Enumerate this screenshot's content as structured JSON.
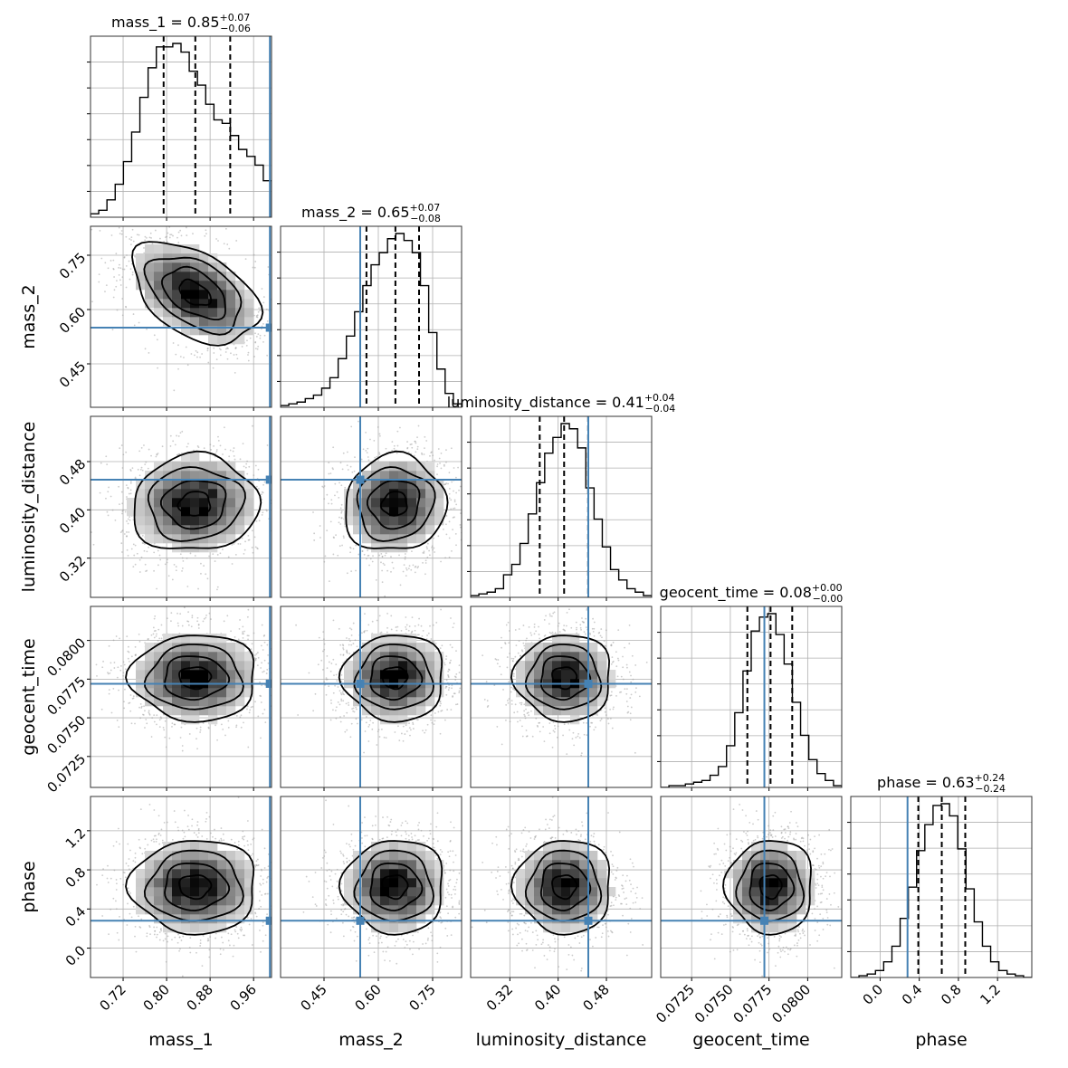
{
  "chart_data": {
    "type": "corner",
    "parameters": [
      {
        "name": "mass_1",
        "label": "mass_1",
        "range": [
          0.66,
          0.993
        ],
        "ticks": [
          0.72,
          0.8,
          0.88,
          0.96
        ],
        "tick_labels": [
          "0.72",
          "0.80",
          "0.88",
          "0.96"
        ],
        "truth": 0.99,
        "median": 0.85,
        "upper_err": "0.07",
        "lower_err": "0.06",
        "quantiles": [
          0.7945,
          0.8528,
          0.917
        ],
        "mean": 0.852,
        "sd": 0.058,
        "hist": [
          0.02,
          0.04,
          0.1,
          0.19,
          0.32,
          0.49,
          0.69,
          0.86,
          0.98,
          0.98,
          1.0,
          0.95,
          0.84,
          0.76,
          0.65,
          0.56,
          0.54,
          0.47,
          0.39,
          0.35,
          0.3,
          0.21
        ],
        "title_main": "mass_1 = 0.85",
        "title_plus": "+0.07",
        "title_minus": "−0.06"
      },
      {
        "name": "mass_2",
        "label": "mass_2",
        "range": [
          0.33,
          0.83
        ],
        "ticks": [
          0.45,
          0.6,
          0.75
        ],
        "tick_labels": [
          "0.45",
          "0.60",
          "0.75"
        ],
        "truth": 0.55,
        "median": 0.65,
        "upper_err": "0.07",
        "lower_err": "0.08",
        "quantiles": [
          0.5672,
          0.6472,
          0.7125
        ],
        "mean": 0.645,
        "sd": 0.07,
        "hist": [
          0.01,
          0.02,
          0.03,
          0.05,
          0.07,
          0.11,
          0.17,
          0.28,
          0.41,
          0.55,
          0.7,
          0.82,
          0.89,
          0.97,
          1.0,
          0.96,
          0.89,
          0.7,
          0.43,
          0.22,
          0.08,
          0.02
        ],
        "title_main": "mass_2 = 0.65",
        "title_plus": "+0.07",
        "title_minus": "−0.08"
      },
      {
        "name": "luminosity_distance",
        "label": "luminosity_distance",
        "range": [
          0.255,
          0.555
        ],
        "ticks": [
          0.32,
          0.4,
          0.48
        ],
        "tick_labels": [
          "0.32",
          "0.40",
          "0.48"
        ],
        "truth": 0.45,
        "median": 0.41,
        "upper_err": "0.04",
        "lower_err": "0.04",
        "quantiles": [
          0.3695,
          0.4099,
          0.4498
        ],
        "mean": 0.41,
        "sd": 0.04,
        "hist": [
          0.01,
          0.02,
          0.03,
          0.05,
          0.13,
          0.19,
          0.31,
          0.48,
          0.66,
          0.83,
          0.92,
          1.0,
          0.97,
          0.86,
          0.63,
          0.45,
          0.29,
          0.16,
          0.1,
          0.05,
          0.03,
          0.01
        ],
        "title_main": "luminosity_distance = 0.41",
        "title_plus": "+0.04",
        "title_minus": "−0.04"
      },
      {
        "name": "geocent_time",
        "label": "geocent_time",
        "range": [
          0.0705,
          0.0822
        ],
        "ticks": [
          0.0725,
          0.075,
          0.0775,
          0.08
        ],
        "tick_labels": [
          "0.0725",
          "0.0750",
          "0.0775",
          "0.0800"
        ],
        "truth": 0.0772,
        "median": 0.08,
        "upper_err": "0.00",
        "lower_err": "0.00",
        "quantiles": [
          0.0761,
          0.0776,
          0.079
        ],
        "mean": 0.0776,
        "sd": 0.0014,
        "hist": [
          0.0,
          0.01,
          0.01,
          0.02,
          0.03,
          0.04,
          0.07,
          0.12,
          0.24,
          0.43,
          0.67,
          0.9,
          0.98,
          1.0,
          0.88,
          0.71,
          0.49,
          0.3,
          0.16,
          0.08,
          0.04,
          0.01
        ],
        "title_main": "geocent_time = 0.08",
        "title_plus": "+0.00",
        "title_minus": "−0.00"
      },
      {
        "name": "phase",
        "label": "phase",
        "range": [
          -0.3,
          1.55
        ],
        "ticks": [
          0.0,
          0.4,
          0.8,
          1.2
        ],
        "tick_labels": [
          "0.0",
          "0.4",
          "0.8",
          "1.2"
        ],
        "truth": 0.28,
        "median": 0.63,
        "upper_err": "0.24",
        "lower_err": "0.24",
        "quantiles": [
          0.39,
          0.63,
          0.87
        ],
        "mean": 0.63,
        "sd": 0.24,
        "hist": [
          0.0,
          0.01,
          0.02,
          0.04,
          0.09,
          0.18,
          0.34,
          0.52,
          0.73,
          0.88,
          0.99,
          1.0,
          0.93,
          0.74,
          0.51,
          0.32,
          0.18,
          0.09,
          0.04,
          0.02,
          0.01,
          0.0
        ],
        "title_main": "phase = 0.63",
        "title_plus": "+0.24",
        "title_minus": "−0.24"
      }
    ],
    "correlations": {
      "1-0": -0.45,
      "2-0": 0.05,
      "2-1": 0.05,
      "3-0": 0.0,
      "3-1": 0.0,
      "3-2": 0.0,
      "4-0": 0.0,
      "4-1": 0.0,
      "4-2": 0.0,
      "4-3": 0.0
    },
    "grid": true,
    "truth_color": "#4682b4",
    "line_color": "#000000",
    "scatter_color": "#999999",
    "grid_color": "#b0b0b0"
  }
}
